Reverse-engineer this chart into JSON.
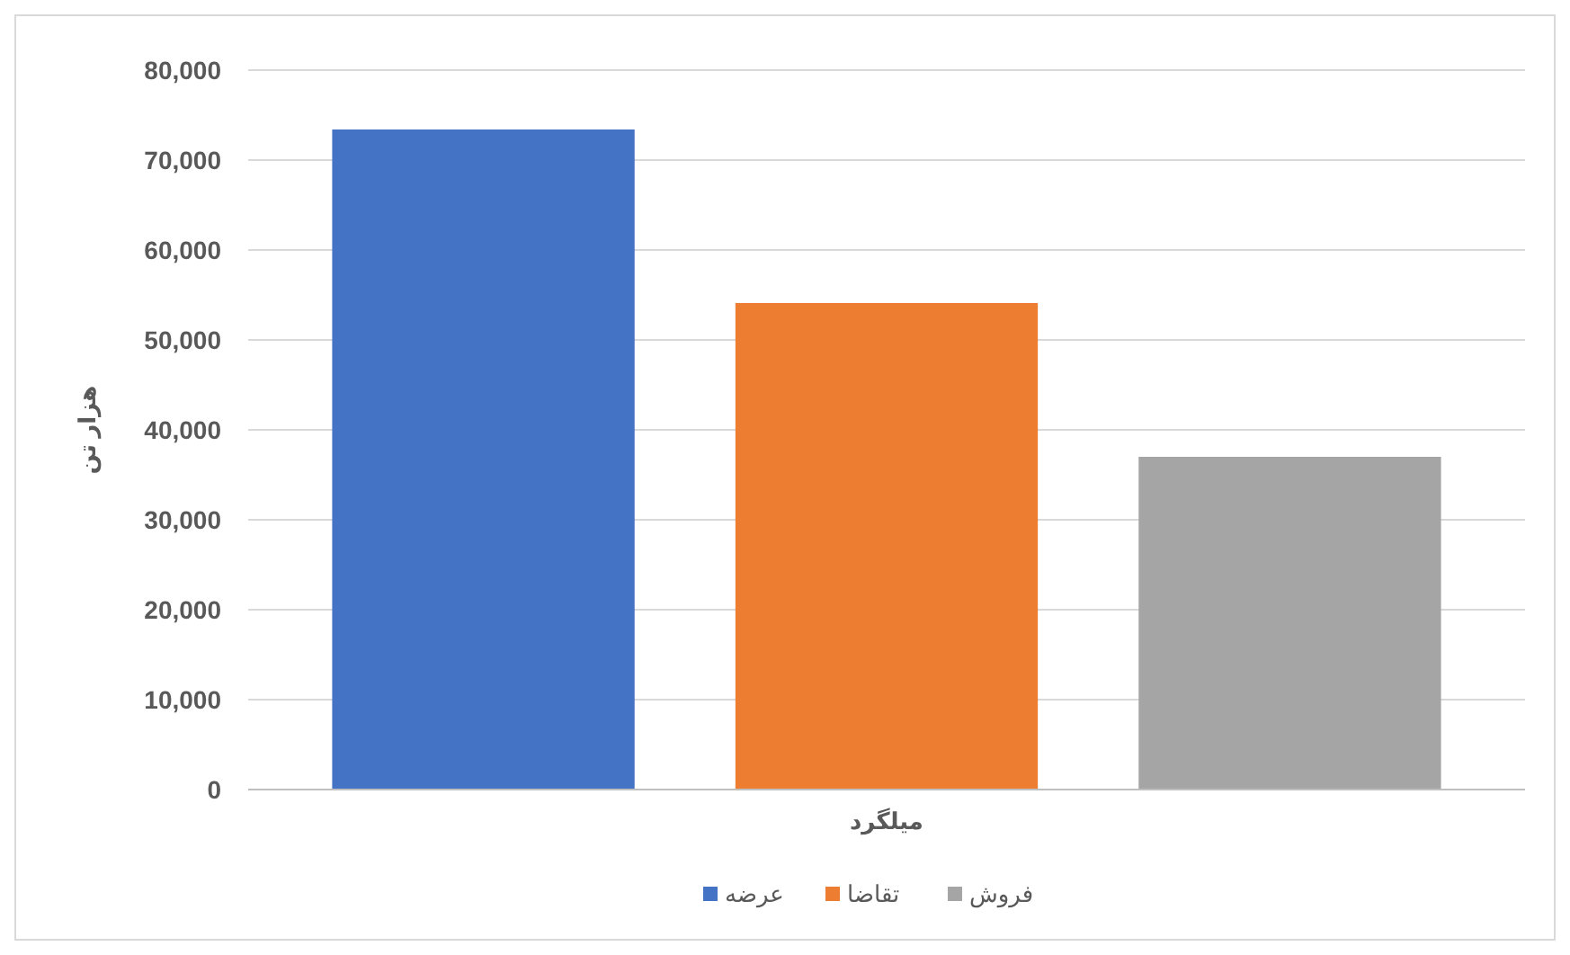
{
  "chart_data": {
    "type": "bar",
    "ylabel": "هزار تن",
    "categories": [
      "میلگرد"
    ],
    "series": [
      {
        "name": "عرضه",
        "color": "#4472c4",
        "values": [
          73400
        ]
      },
      {
        "name": "تقاضا",
        "color": "#ed7d31",
        "values": [
          54100
        ]
      },
      {
        "name": "فروش",
        "color": "#a5a5a5",
        "values": [
          37000
        ]
      }
    ],
    "ylim": [
      0,
      80000
    ],
    "yticks": [
      {
        "value": 0,
        "label": "0"
      },
      {
        "value": 10000,
        "label": "10,000"
      },
      {
        "value": 20000,
        "label": "20,000"
      },
      {
        "value": 30000,
        "label": "30,000"
      },
      {
        "value": 40000,
        "label": "40,000"
      },
      {
        "value": 50000,
        "label": "50,000"
      },
      {
        "value": 60000,
        "label": "60,000"
      },
      {
        "value": 70000,
        "label": "70,000"
      },
      {
        "value": 80000,
        "label": "80,000"
      }
    ],
    "grid": "y",
    "legend": "bottom"
  }
}
